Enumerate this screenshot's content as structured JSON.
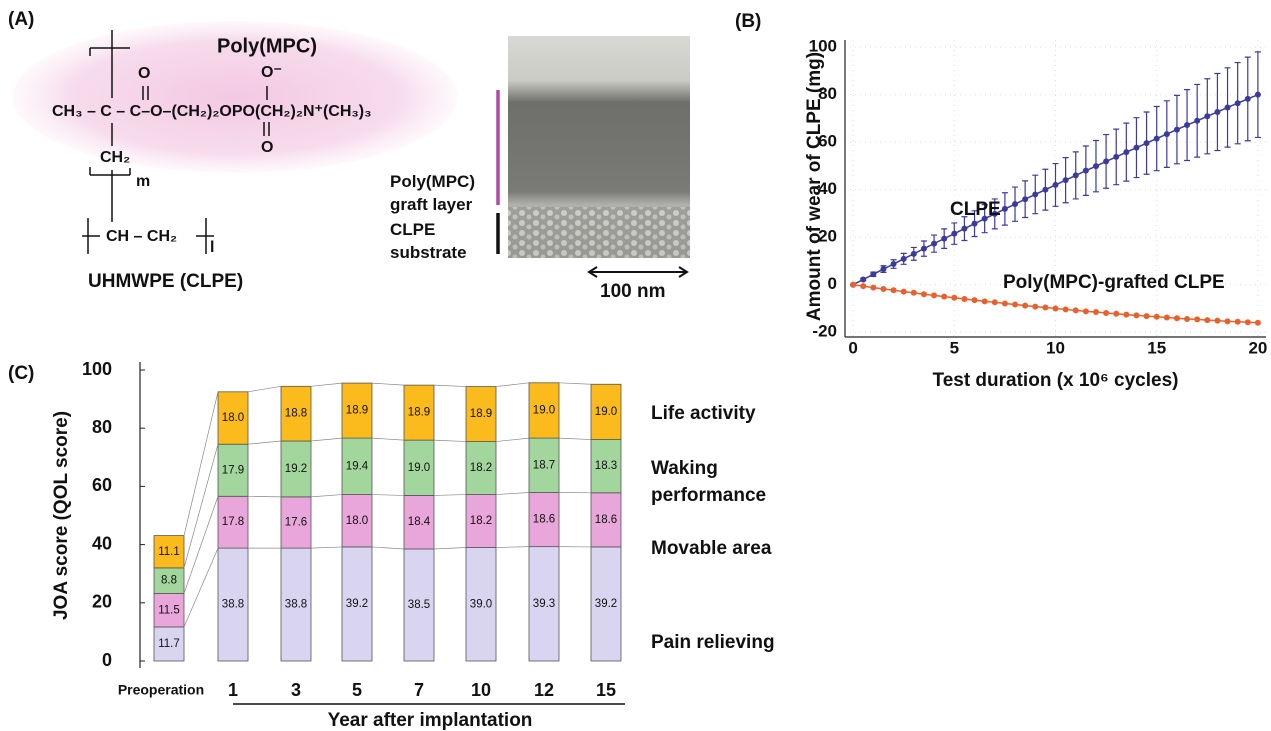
{
  "panel_labels": [
    "(A)",
    "(B)",
    "(C)"
  ],
  "structure": {
    "polymer_name": "Poly(MPC)",
    "carbonyl_o": "O",
    "phosphate_o_top": "O⁻",
    "main_chain": "CH₃ – C – C–O–(CH₂)₂OPO(CH₂)₂N⁺(CH₃)₃",
    "phosphate_o_bottom": "O",
    "ch2": "CH₂",
    "m": "m",
    "backbone": "CH – CH₂",
    "l": "l",
    "substrate_name": "UHMWPE (CLPE)"
  },
  "micrograph": {
    "layer_label": "Poly(MPC) graft layer",
    "substrate_label": "CLPE substrate",
    "scale_bar": "100 nm"
  },
  "chart_data": [
    {
      "type": "line",
      "x_label": "Test duration (x 10⁶ cycles)",
      "y_label": "Amount of wear of CLPE (mg)",
      "x": [
        0,
        0.5,
        1,
        1.5,
        2,
        2.5,
        3,
        3.5,
        4,
        4.5,
        5,
        5.5,
        6,
        6.5,
        7,
        7.5,
        8,
        8.5,
        9,
        9.5,
        10,
        10.5,
        11,
        11.5,
        12,
        12.5,
        13,
        13.5,
        14,
        14.5,
        15,
        15.5,
        16,
        16.5,
        17,
        17.5,
        18,
        18.5,
        19,
        19.5,
        20
      ],
      "series": [
        {
          "name": "CLPE",
          "color": "#3b3b9c",
          "values": [
            0,
            2.2,
            4.4,
            6.6,
            8.7,
            10.9,
            13.0,
            15.2,
            17.3,
            19.4,
            21.5,
            23.6,
            25.7,
            27.8,
            29.8,
            31.9,
            33.9,
            36.0,
            38.0,
            40.0,
            42.0,
            44.0,
            46.0,
            48.0,
            49.9,
            51.9,
            53.8,
            55.8,
            57.7,
            59.6,
            61.5,
            63.4,
            65.3,
            67.2,
            69.0,
            70.9,
            72.7,
            74.6,
            76.4,
            78.2,
            80.0
          ],
          "errors": [
            0,
            0.5,
            0.9,
            1.4,
            1.8,
            2.3,
            2.7,
            3.2,
            3.6,
            4.1,
            4.5,
            5.0,
            5.4,
            5.9,
            6.3,
            6.8,
            7.2,
            7.7,
            8.1,
            8.6,
            9.0,
            9.5,
            9.9,
            10.4,
            10.8,
            11.3,
            11.7,
            12.2,
            12.6,
            13.1,
            13.5,
            14.0,
            14.4,
            14.9,
            15.3,
            15.8,
            16.2,
            16.7,
            17.1,
            17.6,
            18.0
          ]
        },
        {
          "name": "Poly(MPC)-grafted CLPE",
          "color": "#e8612c",
          "values": [
            0,
            -0.6,
            -1.2,
            -1.8,
            -2.3,
            -2.9,
            -3.4,
            -4.0,
            -4.5,
            -5.0,
            -5.5,
            -6.0,
            -6.5,
            -7.0,
            -7.4,
            -7.9,
            -8.3,
            -8.8,
            -9.2,
            -9.6,
            -10.0,
            -10.4,
            -10.8,
            -11.2,
            -11.5,
            -11.9,
            -12.2,
            -12.6,
            -12.9,
            -13.2,
            -13.5,
            -13.8,
            -14.1,
            -14.4,
            -14.6,
            -14.9,
            -15.1,
            -15.4,
            -15.6,
            -15.8,
            -16.0
          ]
        }
      ],
      "xlim": [
        -0.4,
        20.4
      ],
      "xticks": [
        0,
        5,
        10,
        15,
        20
      ],
      "ylim": [
        -22,
        103
      ],
      "yticks": [
        -20,
        0,
        20,
        40,
        60,
        80,
        100
      ],
      "grid": true
    },
    {
      "type": "stacked_bar",
      "x_label": "Year after implantation",
      "y_label": "JOA score (QOL score)",
      "categories": [
        "Preoperation",
        "1",
        "3",
        "5",
        "7",
        "10",
        "12",
        "15"
      ],
      "series": [
        {
          "name": "Pain relieving",
          "color": "#d9d5f0",
          "values": [
            11.7,
            38.8,
            38.8,
            39.2,
            38.5,
            39.0,
            39.3,
            39.2
          ],
          "value_labels": [
            "11.7",
            "38.8",
            "38.8",
            "39.2",
            "38.5",
            "39.0",
            "39.3",
            "39.2"
          ]
        },
        {
          "name": "Movable area",
          "color": "#e8a6da",
          "values": [
            11.5,
            17.8,
            17.6,
            18.0,
            18.4,
            18.2,
            18.6,
            18.6
          ],
          "value_labels": [
            "11.5",
            "17.8",
            "17.6",
            "18.0",
            "18.4",
            "18.2",
            "18.6",
            "18.6"
          ]
        },
        {
          "name": "Waking performance",
          "color": "#a3d69d",
          "values": [
            8.8,
            17.9,
            19.2,
            19.4,
            19.0,
            18.2,
            18.7,
            18.3
          ],
          "value_labels": [
            "8.8",
            "17.9",
            "19.2",
            "19.4",
            "19.0",
            "18.2",
            "18.7",
            "18.3"
          ]
        },
        {
          "name": "Life activity",
          "color": "#fbbb1c",
          "values": [
            11.1,
            18.0,
            18.8,
            18.9,
            18.9,
            18.9,
            19.0,
            19.0
          ],
          "value_labels": [
            "11.1",
            "18.0",
            "18.8",
            "18.9",
            "18.9",
            "18.9",
            "19.0",
            "19.0"
          ]
        }
      ],
      "ylim": [
        0,
        100
      ],
      "yticks": [
        0,
        20,
        40,
        60,
        80,
        100
      ]
    }
  ]
}
